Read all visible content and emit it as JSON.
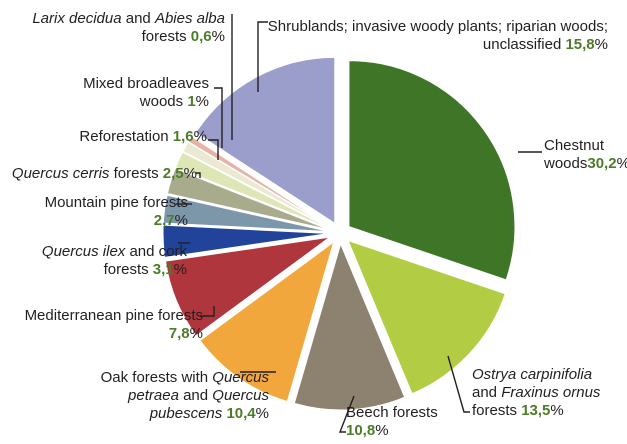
{
  "chart_data": {
    "type": "pie",
    "decimal_mark": ",",
    "unit": "%",
    "slices": [
      {
        "key": "chestnut",
        "label_parts": [
          {
            "t": "Chestnut"
          },
          {
            "br": true
          },
          {
            "t": "woods"
          }
        ],
        "value": 30.2,
        "value_text": "30,2",
        "color": "#3e7527"
      },
      {
        "key": "ostrya",
        "label_parts": [
          {
            "t": "Ostrya carpinifolia",
            "i": true
          },
          {
            "br": true
          },
          {
            "t": "and "
          },
          {
            "t": "Fraxinus ornus",
            "i": true
          },
          {
            "br": true
          },
          {
            "t": "forests "
          }
        ],
        "value": 13.5,
        "value_text": "13,5",
        "color": "#b2cd43"
      },
      {
        "key": "beech",
        "label_parts": [
          {
            "t": "Beech forests"
          },
          {
            "br": true
          }
        ],
        "value": 10.8,
        "value_text": "10,8",
        "color": "#8d8170"
      },
      {
        "key": "oak",
        "label_parts": [
          {
            "t": "Oak forests with "
          },
          {
            "t": "Quercus",
            "i": true
          },
          {
            "br": true
          },
          {
            "t": "petraea",
            "i": true
          },
          {
            "t": " and "
          },
          {
            "t": "Quercus",
            "i": true
          },
          {
            "br": true
          },
          {
            "t": "pubescens",
            "i": true
          },
          {
            "t": " "
          }
        ],
        "value": 10.4,
        "value_text": "10,4",
        "color": "#f1a73b"
      },
      {
        "key": "mediterranean-pine",
        "label_parts": [
          {
            "t": "Mediterranean pine forests"
          },
          {
            "br": true
          }
        ],
        "value": 7.8,
        "value_text": "7,8",
        "color": "#b0363d"
      },
      {
        "key": "quercus-ilex",
        "label_parts": [
          {
            "t": "Quercus ilex",
            "i": true
          },
          {
            "t": " and cork"
          },
          {
            "br": true
          },
          {
            "t": "forests "
          }
        ],
        "value": 3.1,
        "value_text": "3,1",
        "color": "#21449a"
      },
      {
        "key": "mountain-pine",
        "label_parts": [
          {
            "t": "Mountain pine forests"
          },
          {
            "br": true
          }
        ],
        "value": 2.7,
        "value_text": "2,7",
        "color": "#7d97aa"
      },
      {
        "key": "quercus-cerris",
        "label_parts": [
          {
            "t": "Quercus cerris",
            "i": true
          },
          {
            "t": " forests "
          }
        ],
        "value": 2.5,
        "value_text": "2,5",
        "color": "#a8ac8c"
      },
      {
        "key": "reforestation",
        "label_parts": [
          {
            "t": "Reforestation "
          }
        ],
        "value": 1.6,
        "value_text": "1,6",
        "color": "#dfe6b5"
      },
      {
        "key": "mixed-broadleaves",
        "label_parts": [
          {
            "t": "Mixed broadleaves"
          },
          {
            "br": true
          },
          {
            "t": "woods "
          }
        ],
        "value": 1.0,
        "value_text": "1",
        "color": "#ece9d2"
      },
      {
        "key": "larix-abies",
        "label_parts": [
          {
            "t": "Larix decidua",
            "i": true
          },
          {
            "t": " and "
          },
          {
            "t": "Abies alba",
            "i": true
          },
          {
            "br": true
          },
          {
            "t": "forests "
          }
        ],
        "value": 0.6,
        "value_text": "0,6",
        "color": "#e8b3a6"
      },
      {
        "key": "shrublands",
        "label_parts": [
          {
            "t": "Shrublands; invasive woody plants; riparian woods;"
          },
          {
            "br": true
          },
          {
            "t": "unclassified "
          }
        ],
        "value": 15.8,
        "value_text": "15,8",
        "color": "#9b9dcb"
      }
    ]
  }
}
